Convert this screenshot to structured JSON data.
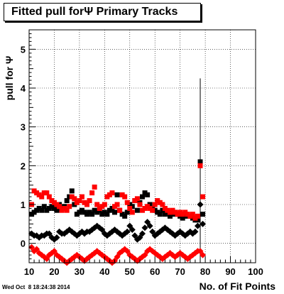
{
  "chart_data": {
    "type": "scatter",
    "title": "Fitted pull forΨ  Primary Tracks",
    "xlabel": "No. of Fit Points",
    "ylabel": "pull for Ψ",
    "xlim": [
      10,
      100
    ],
    "ylim": [
      -0.5,
      5.5
    ],
    "x_ticks": [
      "10",
      "20",
      "30",
      "40",
      "50",
      "60",
      "70",
      "80",
      "90",
      "100"
    ],
    "y_ticks": [
      "0",
      "1",
      "2",
      "3",
      "4",
      "5"
    ],
    "grid": true,
    "series": [
      {
        "marker": "square",
        "color": "#000000",
        "x": [
          11,
          12,
          13,
          14,
          15,
          16,
          17,
          18,
          19,
          20,
          21,
          22,
          23,
          24,
          25,
          26,
          27,
          28,
          29,
          30,
          31,
          32,
          33,
          34,
          35,
          36,
          37,
          38,
          39,
          40,
          41,
          42,
          43,
          44,
          45,
          46,
          47,
          48,
          49,
          50,
          51,
          52,
          53,
          54,
          55,
          56,
          57,
          58,
          59,
          60,
          61,
          62,
          63,
          64,
          65,
          66,
          67,
          68,
          69,
          70,
          71,
          72,
          73,
          74,
          75,
          76,
          77,
          78,
          79
        ],
        "y": [
          0.75,
          0.8,
          0.85,
          0.9,
          0.85,
          0.95,
          0.85,
          0.9,
          0.95,
          0.9,
          0.85,
          1.0,
          0.9,
          0.95,
          1.1,
          1.2,
          1.35,
          1.0,
          0.75,
          0.8,
          0.85,
          0.8,
          0.75,
          0.8,
          0.75,
          0.85,
          0.8,
          0.85,
          0.75,
          0.8,
          0.75,
          0.85,
          0.9,
          0.8,
          1.25,
          0.85,
          0.75,
          0.7,
          0.8,
          1.0,
          0.95,
          1.1,
          0.85,
          1.05,
          1.2,
          1.3,
          1.25,
          1.0,
          0.9,
          0.85,
          0.8,
          0.75,
          0.85,
          0.75,
          0.8,
          0.7,
          0.75,
          0.8,
          0.75,
          0.7,
          0.65,
          0.7,
          0.7,
          0.7,
          0.65,
          0.6,
          0.6,
          2.1,
          0.75
        ]
      },
      {
        "marker": "diamond",
        "color": "#000000",
        "x": [
          11,
          12,
          13,
          14,
          15,
          16,
          17,
          18,
          19,
          20,
          21,
          22,
          23,
          24,
          25,
          26,
          27,
          28,
          29,
          30,
          31,
          32,
          33,
          34,
          35,
          36,
          37,
          38,
          39,
          40,
          41,
          42,
          43,
          44,
          45,
          46,
          47,
          48,
          49,
          50,
          51,
          52,
          53,
          54,
          55,
          56,
          57,
          58,
          59,
          60,
          61,
          62,
          63,
          64,
          65,
          66,
          67,
          68,
          69,
          70,
          71,
          72,
          73,
          74,
          75,
          76,
          77,
          78,
          79
        ],
        "y": [
          0.25,
          0.2,
          0.2,
          0.15,
          0.2,
          0.2,
          0.25,
          0.25,
          0.15,
          0.1,
          0.15,
          0.3,
          0.25,
          0.25,
          0.3,
          0.35,
          0.3,
          0.25,
          0.2,
          0.25,
          0.3,
          0.25,
          0.3,
          0.3,
          0.35,
          0.4,
          0.45,
          0.4,
          0.35,
          0.25,
          0.2,
          0.25,
          0.3,
          0.35,
          0.3,
          0.25,
          0.2,
          0.25,
          0.3,
          0.45,
          0.35,
          0.2,
          0.1,
          0.15,
          0.25,
          0.4,
          0.55,
          0.45,
          0.3,
          0.2,
          0.25,
          0.3,
          0.35,
          0.4,
          0.35,
          0.3,
          0.25,
          0.2,
          0.25,
          0.3,
          0.25,
          0.2,
          0.25,
          0.3,
          0.25,
          0.3,
          0.45,
          1.0,
          0.5
        ]
      },
      {
        "marker": "square",
        "color": "#ff0000",
        "x": [
          11,
          12,
          13,
          14,
          15,
          16,
          17,
          18,
          19,
          20,
          21,
          22,
          23,
          24,
          25,
          26,
          27,
          28,
          29,
          30,
          31,
          32,
          33,
          34,
          35,
          36,
          37,
          38,
          39,
          40,
          41,
          42,
          43,
          44,
          45,
          46,
          47,
          48,
          49,
          50,
          51,
          52,
          53,
          54,
          55,
          56,
          57,
          58,
          59,
          60,
          61,
          62,
          63,
          64,
          65,
          66,
          67,
          68,
          69,
          70,
          71,
          72,
          73,
          74,
          75,
          76,
          77,
          78,
          79
        ],
        "y": [
          1.0,
          1.35,
          1.3,
          1.25,
          1.2,
          1.3,
          1.3,
          1.2,
          1.1,
          1.05,
          1.0,
          0.95,
          0.85,
          0.9,
          0.85,
          0.95,
          1.2,
          1.15,
          1.05,
          1.1,
          1.2,
          1.05,
          1.0,
          1.1,
          1.3,
          1.45,
          1.0,
          0.9,
          0.95,
          1.0,
          1.2,
          1.25,
          1.3,
          0.95,
          1.0,
          0.85,
          1.25,
          1.2,
          1.05,
          0.9,
          0.8,
          1.1,
          1.15,
          1.0,
          0.85,
          0.9,
          0.95,
          0.9,
          0.85,
          1.0,
          1.1,
          1.05,
          1.0,
          0.9,
          0.85,
          0.8,
          0.85,
          0.8,
          0.75,
          0.8,
          0.75,
          0.8,
          0.75,
          0.7,
          0.75,
          0.65,
          0.7,
          2.0,
          1.2
        ]
      },
      {
        "marker": "diamond",
        "color": "#ff0000",
        "x": [
          11,
          12,
          13,
          14,
          15,
          16,
          17,
          18,
          19,
          20,
          21,
          22,
          23,
          24,
          25,
          26,
          27,
          28,
          29,
          30,
          31,
          32,
          33,
          34,
          35,
          36,
          37,
          38,
          39,
          40,
          41,
          42,
          43,
          44,
          45,
          46,
          47,
          48,
          49,
          50,
          51,
          52,
          53,
          54,
          55,
          56,
          57,
          58,
          59,
          60,
          61,
          62,
          63,
          64,
          65,
          66,
          67,
          68,
          69,
          70,
          71,
          72,
          73,
          74,
          75,
          76,
          77,
          78,
          79
        ],
        "y": [
          -0.1,
          -0.2,
          -0.15,
          -0.25,
          -0.3,
          -0.35,
          -0.4,
          -0.3,
          -0.25,
          -0.2,
          -0.3,
          -0.35,
          -0.4,
          -0.45,
          -0.5,
          -0.45,
          -0.4,
          -0.35,
          -0.3,
          -0.35,
          -0.4,
          -0.45,
          -0.4,
          -0.35,
          -0.3,
          -0.25,
          -0.2,
          -0.25,
          -0.3,
          -0.35,
          -0.4,
          -0.45,
          -0.5,
          -0.45,
          -0.35,
          -0.25,
          -0.2,
          -0.15,
          -0.2,
          -0.3,
          -0.35,
          -0.4,
          -0.45,
          -0.4,
          -0.35,
          -0.3,
          -0.2,
          -0.15,
          -0.2,
          -0.25,
          -0.3,
          -0.35,
          -0.4,
          -0.35,
          -0.3,
          -0.25,
          -0.3,
          -0.35,
          -0.3,
          -0.25,
          -0.3,
          -0.35,
          -0.4,
          -0.35,
          -0.3,
          -0.25,
          -0.2,
          -0.2,
          -0.3
        ]
      }
    ],
    "errorbar": {
      "x": 78,
      "y_low": -0.5,
      "y_high": 4.25
    },
    "footer": "Wed Oct  8 18:24:38 2014"
  }
}
